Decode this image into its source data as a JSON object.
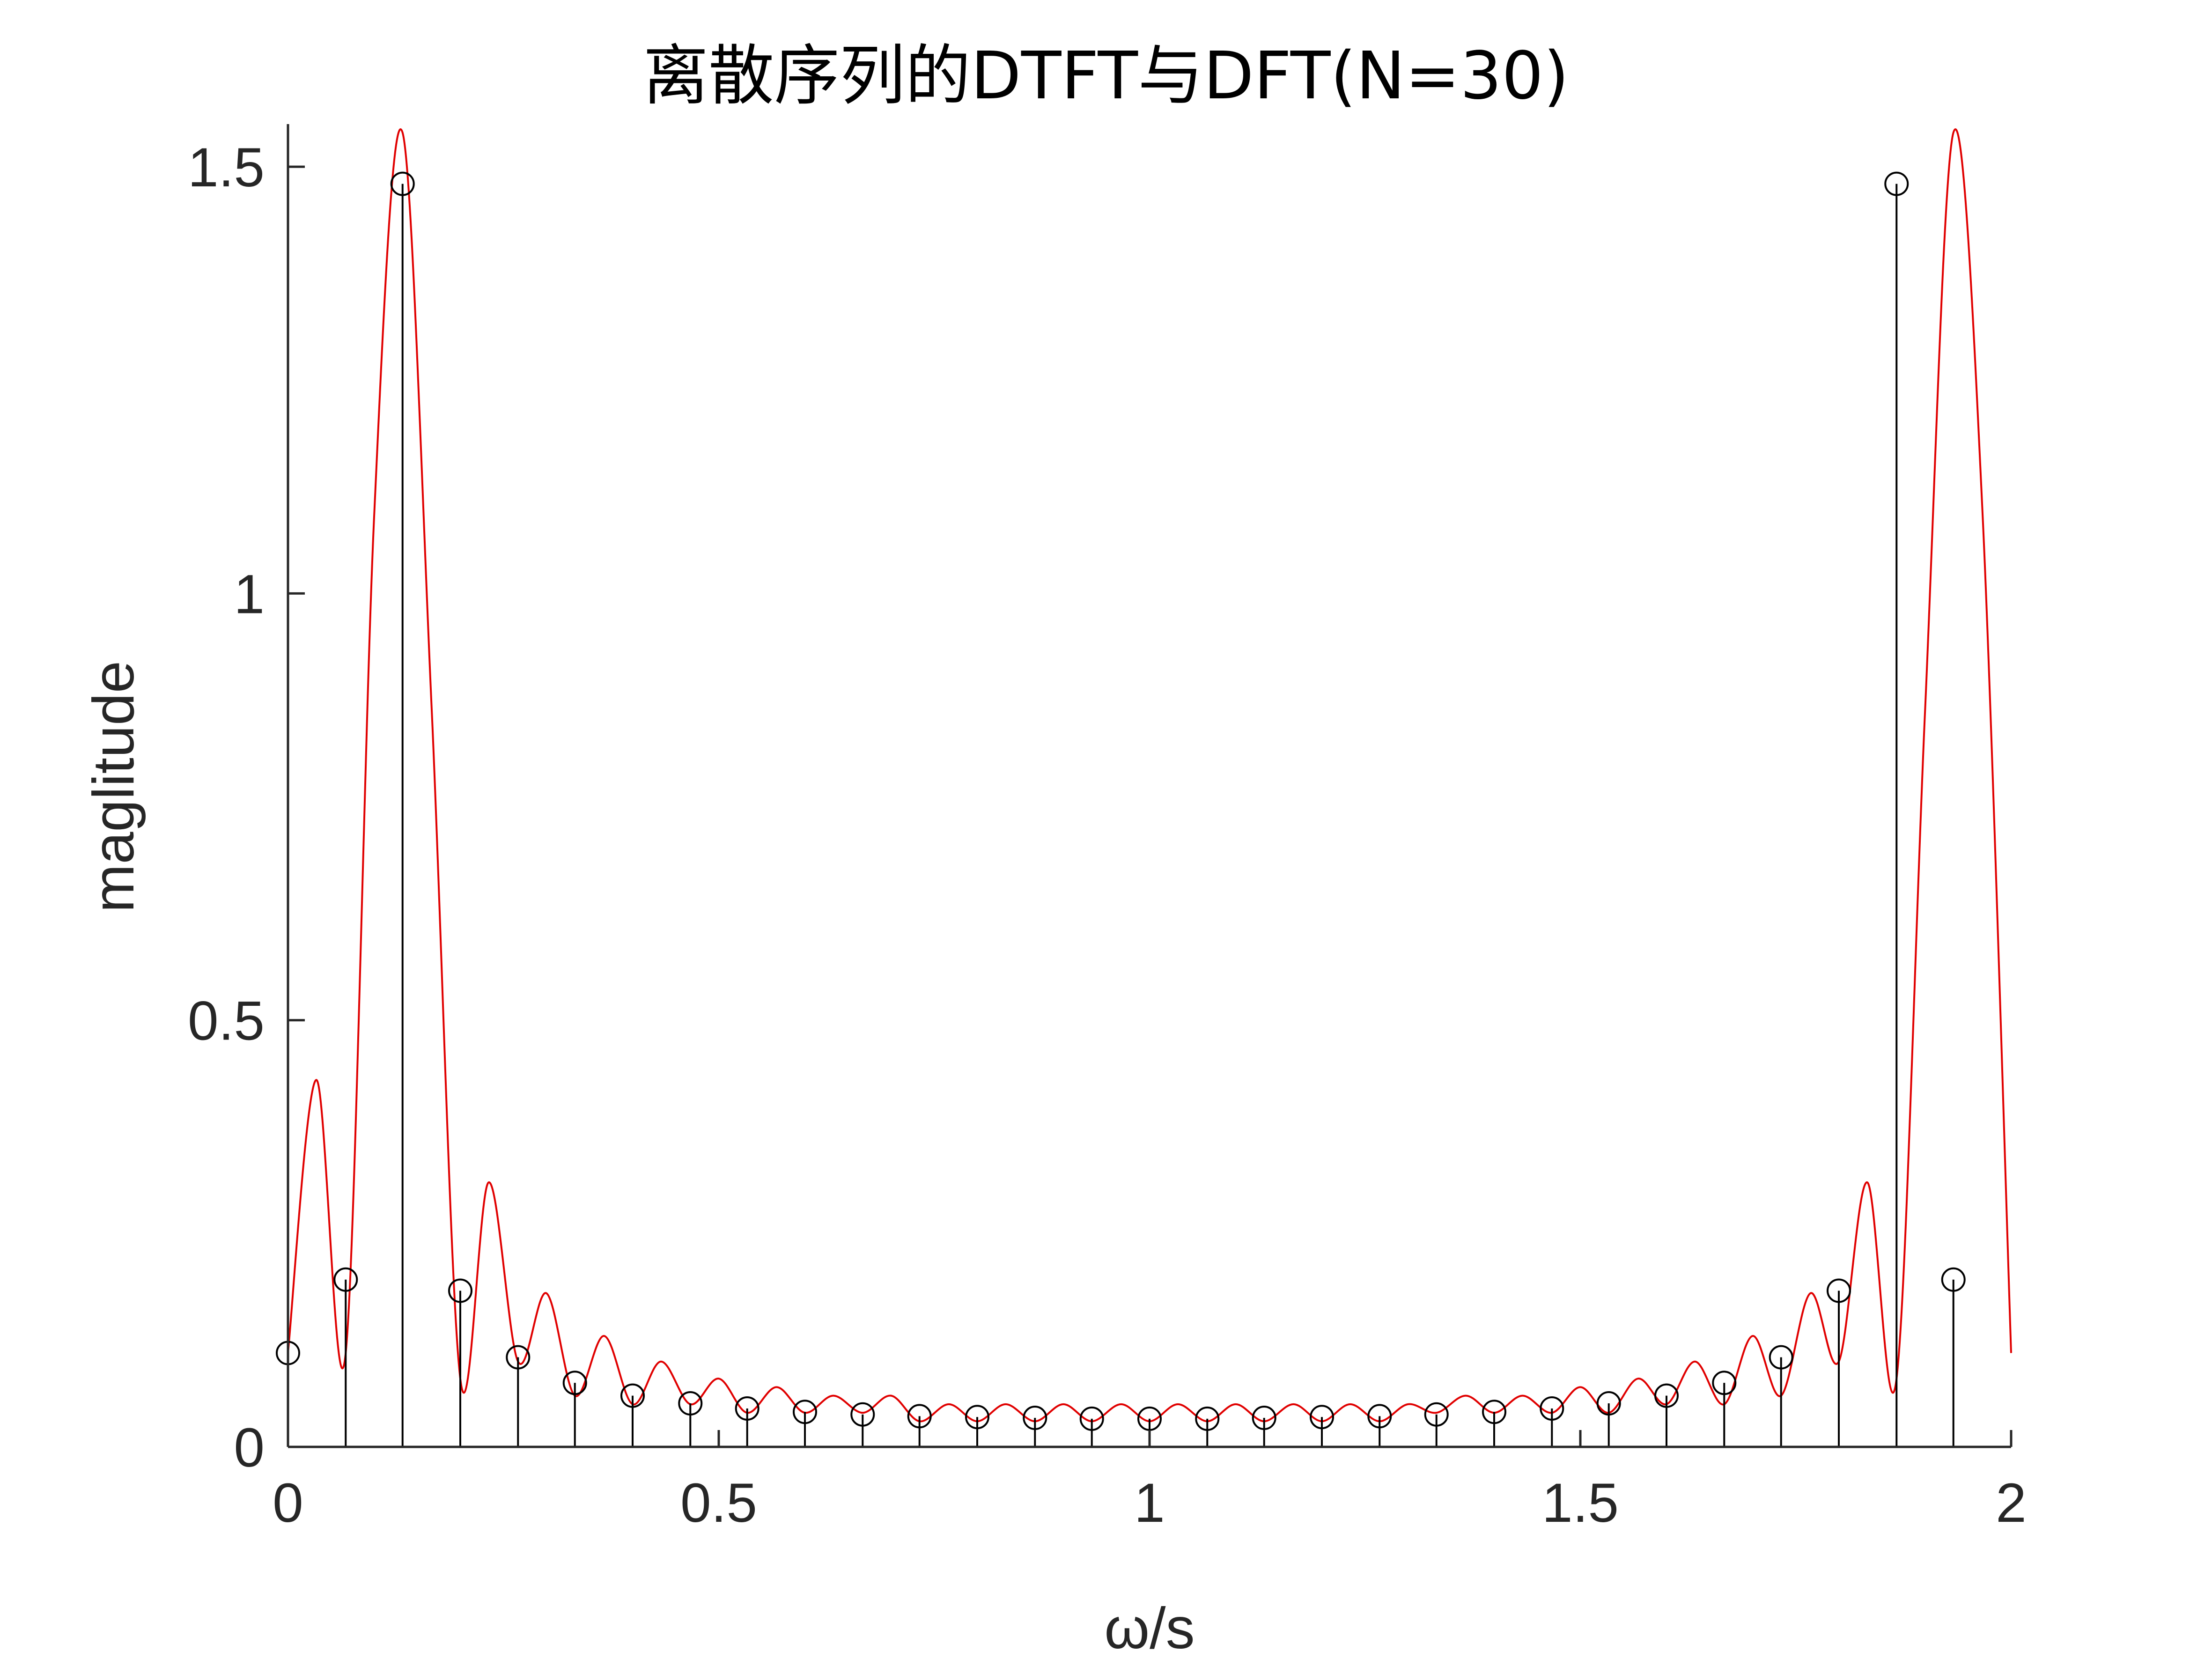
{
  "chart_data": {
    "type": "line",
    "title": "离散序列的DTFT与DFT(N=30)",
    "xlabel": "ω/s",
    "ylabel": "maglitude",
    "xlim": [
      0,
      2
    ],
    "ylim": [
      0,
      1.55
    ],
    "xticks": [
      "0",
      "0.5",
      "1",
      "1.5",
      "2"
    ],
    "xtick_values": [
      0,
      0.5,
      1,
      1.5,
      2
    ],
    "yticks": [
      "0",
      "0.5",
      "1",
      "1.5"
    ],
    "ytick_values": [
      0,
      0.5,
      1,
      1.5
    ],
    "grid": false,
    "series": [
      {
        "kind": "line",
        "color": "#e00000",
        "x": [
          0,
          0.033,
          0.067,
          0.1,
          0.133,
          0.167,
          0.2,
          0.233,
          0.267,
          0.3,
          0.333,
          0.367,
          0.4,
          0.433,
          0.467,
          0.5,
          0.533,
          0.567,
          0.6,
          0.633,
          0.667,
          0.7,
          0.733,
          0.767,
          0.8,
          0.833,
          0.867,
          0.9,
          0.933,
          0.967,
          1,
          1.033,
          1.067,
          1.1,
          1.133,
          1.167,
          1.2,
          1.233,
          1.267,
          1.3,
          1.333,
          1.367,
          1.4,
          1.433,
          1.467,
          1.5,
          1.533,
          1.567,
          1.6,
          1.633,
          1.667,
          1.7,
          1.733,
          1.767,
          1.8,
          1.833,
          1.867,
          1.9,
          1.933,
          1.967,
          2
        ],
        "y": [
          0.11,
          0.43,
          0.11,
          1.09,
          1.54,
          0.86,
          0.08,
          0.31,
          0.1,
          0.18,
          0.06,
          0.13,
          0.05,
          0.1,
          0.05,
          0.08,
          0.04,
          0.07,
          0.04,
          0.06,
          0.04,
          0.06,
          0.03,
          0.05,
          0.03,
          0.05,
          0.03,
          0.05,
          0.03,
          0.05,
          0.03,
          0.05,
          0.03,
          0.05,
          0.03,
          0.05,
          0.03,
          0.05,
          0.03,
          0.05,
          0.04,
          0.06,
          0.04,
          0.06,
          0.04,
          0.07,
          0.04,
          0.08,
          0.05,
          0.1,
          0.05,
          0.13,
          0.06,
          0.18,
          0.1,
          0.31,
          0.08,
          0.86,
          1.54,
          1.09,
          0.11
        ]
      },
      {
        "kind": "stem",
        "color": "#000000",
        "x": [
          0,
          0.067,
          0.133,
          0.2,
          0.267,
          0.333,
          0.4,
          0.467,
          0.533,
          0.6,
          0.667,
          0.733,
          0.8,
          0.867,
          0.933,
          1,
          1.067,
          1.133,
          1.2,
          1.267,
          1.333,
          1.4,
          1.467,
          1.533,
          1.6,
          1.667,
          1.733,
          1.8,
          1.867,
          1.933
        ],
        "y": [
          0.11,
          0.196,
          1.48,
          0.183,
          0.105,
          0.075,
          0.06,
          0.051,
          0.045,
          0.041,
          0.038,
          0.036,
          0.035,
          0.034,
          0.033,
          0.033,
          0.033,
          0.034,
          0.035,
          0.036,
          0.038,
          0.041,
          0.045,
          0.051,
          0.06,
          0.075,
          0.105,
          0.183,
          1.48,
          0.196
        ]
      }
    ]
  }
}
